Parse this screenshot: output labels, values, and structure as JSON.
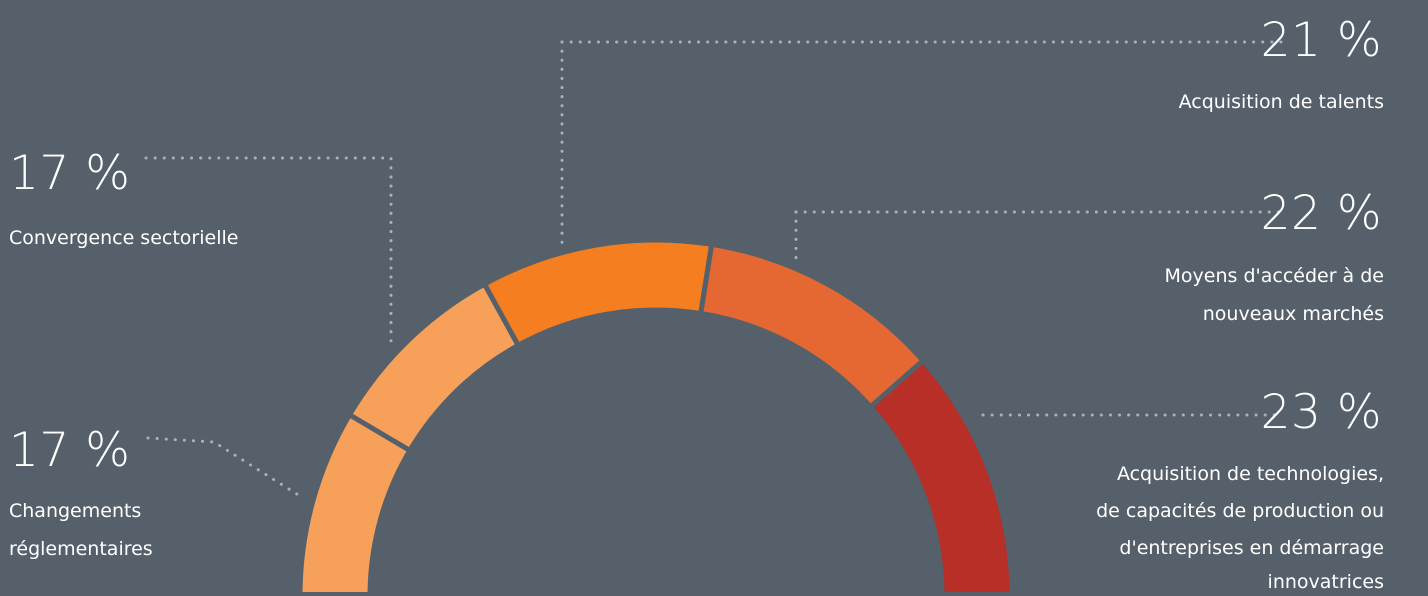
{
  "chart_data": {
    "type": "donut",
    "title": "",
    "series": [
      {
        "label": "Changements réglementaires",
        "value": 17,
        "value_label": "17 %",
        "color": "#f7a05a"
      },
      {
        "label": "Convergence sectorielle",
        "value": 17,
        "value_label": "17 %",
        "color": "#f7a05a"
      },
      {
        "label": "Acquisition de talents",
        "value": 21,
        "value_label": "21 %",
        "color": "#f47e20"
      },
      {
        "label": "Moyens d'accéder à de nouveaux marchés",
        "value": 22,
        "value_label": "22 %",
        "color": "#e56731"
      },
      {
        "label": "Acquisition de technologies, de capacités de production ou d'entreprises en démarrage innovatrices",
        "value": 23,
        "value_label": "23 %",
        "color": "#b72f27"
      }
    ]
  },
  "callouts": {
    "talents": {
      "value": "21 %",
      "label": "Acquisition de talents"
    },
    "convergence": {
      "value": "17 %",
      "label": "Convergence sectorielle"
    },
    "marches": {
      "value": "22 %",
      "label_line1": "Moyens d'accéder à de",
      "label_line2": "nouveaux marchés"
    },
    "reglementaires": {
      "value": "17 %",
      "label_line1": "Changements",
      "label_line2": "réglementaires"
    },
    "technologies": {
      "value": "23 %",
      "label_line1": "Acquisition de technologies,",
      "label_line2": "de capacités de production ou",
      "label_line3": "d'entreprises en démarrage",
      "label_line4": "innovatrices"
    }
  },
  "colors": {
    "background": "#56606b",
    "leader_dots": "#aab1b9"
  }
}
